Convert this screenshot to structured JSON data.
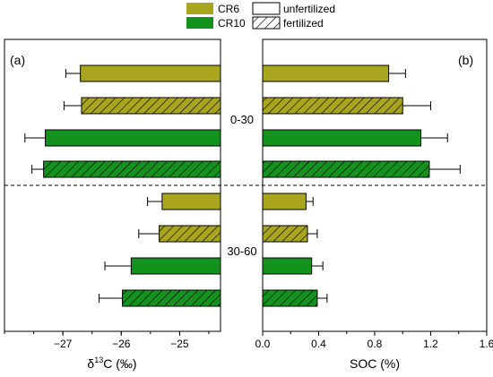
{
  "colors": {
    "cr6": "#a9a51e",
    "cr10": "#14921e",
    "axis": "#000000"
  },
  "legend": {
    "cr6": "CR6",
    "cr10": "CR10",
    "unfertilized": "unfertilized",
    "fertilized": "fertilized"
  },
  "chart_data": [
    {
      "type": "bar",
      "orientation": "horizontal",
      "panel_label": "(a)",
      "xlabel": "δ13C (‰)",
      "xlabel_main": "δ",
      "xlabel_sup": "13",
      "xlabel_rest": "C (‰)",
      "xlim": [
        -28,
        -24.3
      ],
      "xticks": [
        -27,
        -26,
        -25
      ],
      "xtick_labels": [
        "−27",
        "−26",
        "−25"
      ],
      "depth_groups": [
        "0-30",
        "30-60"
      ],
      "bars": [
        {
          "depth": "0-30",
          "treatment": "CR6",
          "fert": "unfertilized",
          "value": -26.7,
          "err": 0.25
        },
        {
          "depth": "0-30",
          "treatment": "CR6",
          "fert": "fertilized",
          "value": -26.68,
          "err": 0.3
        },
        {
          "depth": "0-30",
          "treatment": "CR10",
          "fert": "unfertilized",
          "value": -27.3,
          "err": 0.35
        },
        {
          "depth": "0-30",
          "treatment": "CR10",
          "fert": "fertilized",
          "value": -27.33,
          "err": 0.2
        },
        {
          "depth": "30-60",
          "treatment": "CR6",
          "fert": "unfertilized",
          "value": -25.3,
          "err": 0.25
        },
        {
          "depth": "30-60",
          "treatment": "CR6",
          "fert": "fertilized",
          "value": -25.35,
          "err": 0.35
        },
        {
          "depth": "30-60",
          "treatment": "CR10",
          "fert": "unfertilized",
          "value": -25.83,
          "err": 0.45
        },
        {
          "depth": "30-60",
          "treatment": "CR10",
          "fert": "fertilized",
          "value": -25.98,
          "err": 0.4
        }
      ]
    },
    {
      "type": "bar",
      "orientation": "horizontal",
      "panel_label": "(b)",
      "xlabel": "SOC (%)",
      "xlim": [
        0,
        1.6
      ],
      "xticks": [
        0,
        0.4,
        0.8,
        1.2,
        1.6
      ],
      "xtick_labels": [
        "0.0",
        "0.4",
        "0.8",
        "1.2",
        "1.6"
      ],
      "depth_groups": [
        "0-30",
        "30-60"
      ],
      "bars": [
        {
          "depth": "0-30",
          "treatment": "CR6",
          "fert": "unfertilized",
          "value": 0.9,
          "err": 0.12
        },
        {
          "depth": "0-30",
          "treatment": "CR6",
          "fert": "fertilized",
          "value": 1.0,
          "err": 0.2
        },
        {
          "depth": "0-30",
          "treatment": "CR10",
          "fert": "unfertilized",
          "value": 1.13,
          "err": 0.19
        },
        {
          "depth": "0-30",
          "treatment": "CR10",
          "fert": "fertilized",
          "value": 1.19,
          "err": 0.22
        },
        {
          "depth": "30-60",
          "treatment": "CR6",
          "fert": "unfertilized",
          "value": 0.31,
          "err": 0.05
        },
        {
          "depth": "30-60",
          "treatment": "CR6",
          "fert": "fertilized",
          "value": 0.32,
          "err": 0.07
        },
        {
          "depth": "30-60",
          "treatment": "CR10",
          "fert": "unfertilized",
          "value": 0.35,
          "err": 0.08
        },
        {
          "depth": "30-60",
          "treatment": "CR10",
          "fert": "fertilized",
          "value": 0.39,
          "err": 0.07
        }
      ]
    }
  ]
}
